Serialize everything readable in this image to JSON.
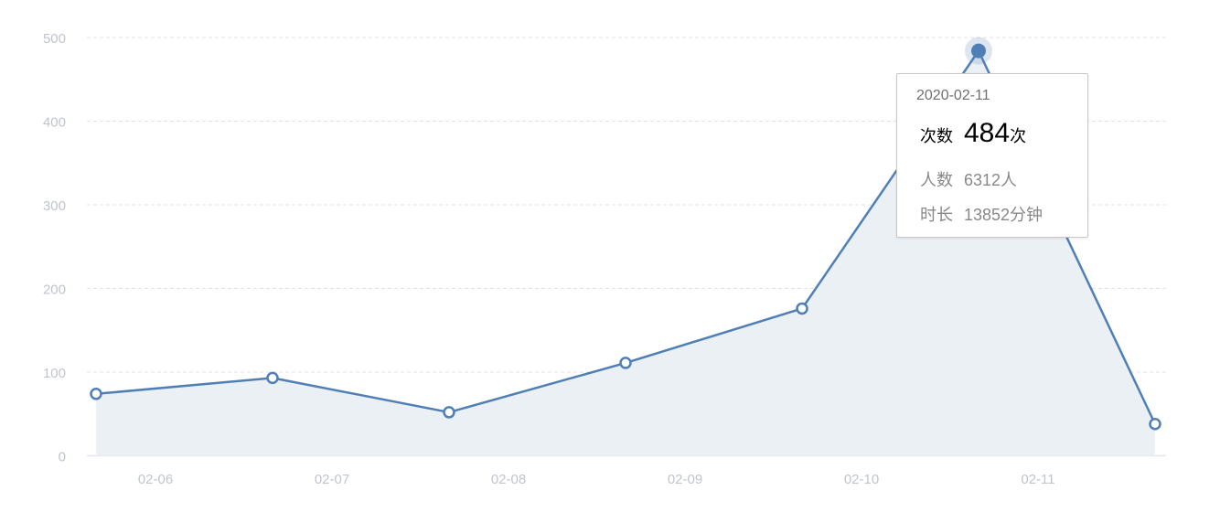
{
  "chart_data": {
    "type": "area",
    "x_tick_labels": [
      "02-06",
      "02-07",
      "02-08",
      "02-09",
      "02-10",
      "02-11"
    ],
    "values": [
      74,
      93,
      52,
      111,
      176,
      484,
      38
    ],
    "ylim": [
      0,
      500
    ],
    "y_ticks": [
      0,
      100,
      200,
      300,
      400,
      500
    ],
    "grid": true,
    "highlighted_index": 5,
    "colors": {
      "line": "#4f7fb5",
      "area": "#ebf0f5",
      "grid": "#e0e3e8",
      "axis_text": "#c0c4cc"
    }
  },
  "tooltip": {
    "date": "2020-02-11",
    "count_label": "次数",
    "count_value": "484",
    "count_unit": "次",
    "people_label": "人数",
    "people_value": "6312人",
    "duration_label": "时长",
    "duration_value": "13852分钟"
  }
}
